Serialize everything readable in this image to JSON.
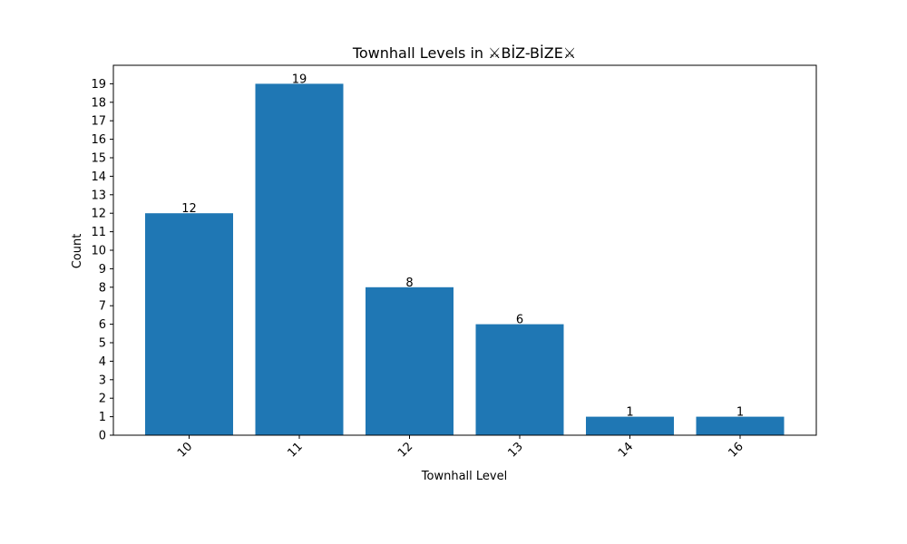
{
  "chart_data": {
    "type": "bar",
    "title": "Townhall Levels in ⚔BİZ-BİZE⚔",
    "xlabel": "Townhall Level",
    "ylabel": "Count",
    "categories": [
      "10",
      "11",
      "12",
      "13",
      "14",
      "16"
    ],
    "values": [
      12,
      19,
      8,
      6,
      1,
      1
    ],
    "ylim": [
      0,
      20
    ],
    "yticks": [
      0,
      1,
      2,
      3,
      4,
      5,
      6,
      7,
      8,
      9,
      10,
      11,
      12,
      13,
      14,
      15,
      16,
      17,
      18,
      19
    ],
    "bar_color": "#1f77b4",
    "grid": false,
    "legend": "none",
    "x_tick_rotation": "45 degrees"
  }
}
